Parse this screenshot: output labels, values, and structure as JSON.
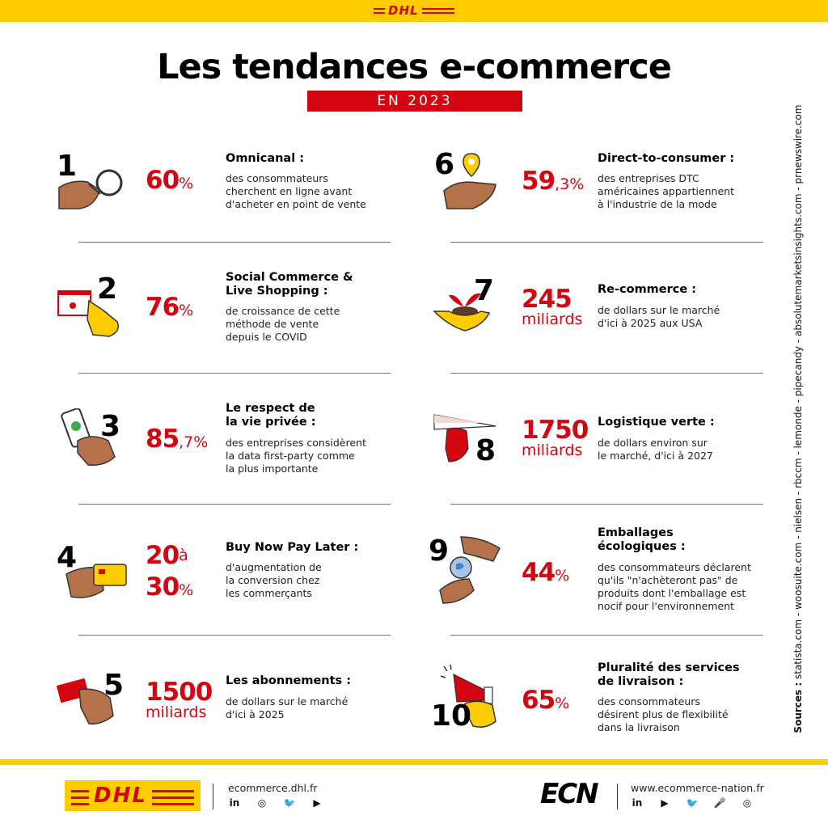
{
  "header": {
    "logo": "DHL",
    "title": "Les tendances e-commerce",
    "subtitle": "EN 2023"
  },
  "sources": {
    "label": "Sources :",
    "list": "statista.com  -  woosuite.com  -  nielsen  -  rbccm  -  lemonde  -  pipecandy  -  absolutemarketsinsights.com  -  prnewswire.com"
  },
  "trends": [
    {
      "num": "1",
      "stat_big": "60",
      "stat_small": "%",
      "title": "Omnicanal :",
      "desc": [
        "des consommateurs",
        "cherchent en ligne avant",
        "d'acheter en point de vente"
      ]
    },
    {
      "num": "2",
      "stat_big": "76",
      "stat_small": "%",
      "title": "Social Commerce & Live Shopping :",
      "title_lines": [
        "Social Commerce &",
        "Live Shopping :"
      ],
      "desc": [
        "de croissance de cette",
        "méthode de vente",
        "depuis le COVID"
      ]
    },
    {
      "num": "3",
      "stat_big": "85",
      "stat_small": ",7%",
      "title_lines": [
        "Le respect de",
        "la vie privée :"
      ],
      "desc": [
        "des entreprises considèrent",
        "la data first-party comme",
        "la plus importante"
      ]
    },
    {
      "num": "4",
      "stat_big": "20",
      "stat_mid": "à",
      "stat_big2": "30",
      "stat_small": "%",
      "title": "Buy Now Pay Later :",
      "desc": [
        "d'augmentation de",
        "la conversion chez",
        "les commerçants"
      ]
    },
    {
      "num": "5",
      "stat_big": "1500",
      "stat_unit": "miliards",
      "title": "Les abonnements :",
      "desc": [
        "de dollars sur le marché",
        "d'ici à 2025"
      ]
    },
    {
      "num": "6",
      "stat_big": "59",
      "stat_small": ",3%",
      "title": "Direct-to-consumer :",
      "desc": [
        "des entreprises DTC",
        "américaines appartiennent",
        "à l'industrie de la mode"
      ]
    },
    {
      "num": "7",
      "stat_big": "245",
      "stat_unit": "miliards",
      "title": "Re-commerce :",
      "desc": [
        "de dollars sur le marché",
        "d'ici à 2025 aux USA"
      ]
    },
    {
      "num": "8",
      "stat_big": "1750",
      "stat_unit": "miliards",
      "title": "Logistique verte :",
      "desc": [
        "de dollars environ sur",
        "le marché, d'ici à 2027"
      ]
    },
    {
      "num": "9",
      "stat_big": "44",
      "stat_small": "%",
      "title_lines": [
        "Emballages",
        "écologiques :"
      ],
      "desc": [
        "des consommateurs déclarent",
        "qu'ils \"n'achèteront pas\" de",
        "produits dont l'emballage est",
        "nocif pour l'environnement"
      ]
    },
    {
      "num": "10",
      "stat_big": "65",
      "stat_small": "%",
      "title_lines": [
        "Pluralité des services",
        "de livraison :"
      ],
      "desc": [
        "des consommateurs",
        "désirent plus de flexibilité",
        "dans la livraison"
      ]
    }
  ],
  "footer": {
    "dhl_logo": "DHL",
    "dhl_site": "ecommerce.dhl.fr",
    "dhl_social": [
      "in",
      "◎",
      "🐦",
      "▶"
    ],
    "ecn_logo": "ECN",
    "ecn_site": "www.ecommerce-nation.fr",
    "ecn_social": [
      "in",
      "▶",
      "🐦",
      "🎤",
      "◎"
    ]
  },
  "colors": {
    "brand_yellow": "#FFCC00",
    "brand_red": "#D40511"
  }
}
